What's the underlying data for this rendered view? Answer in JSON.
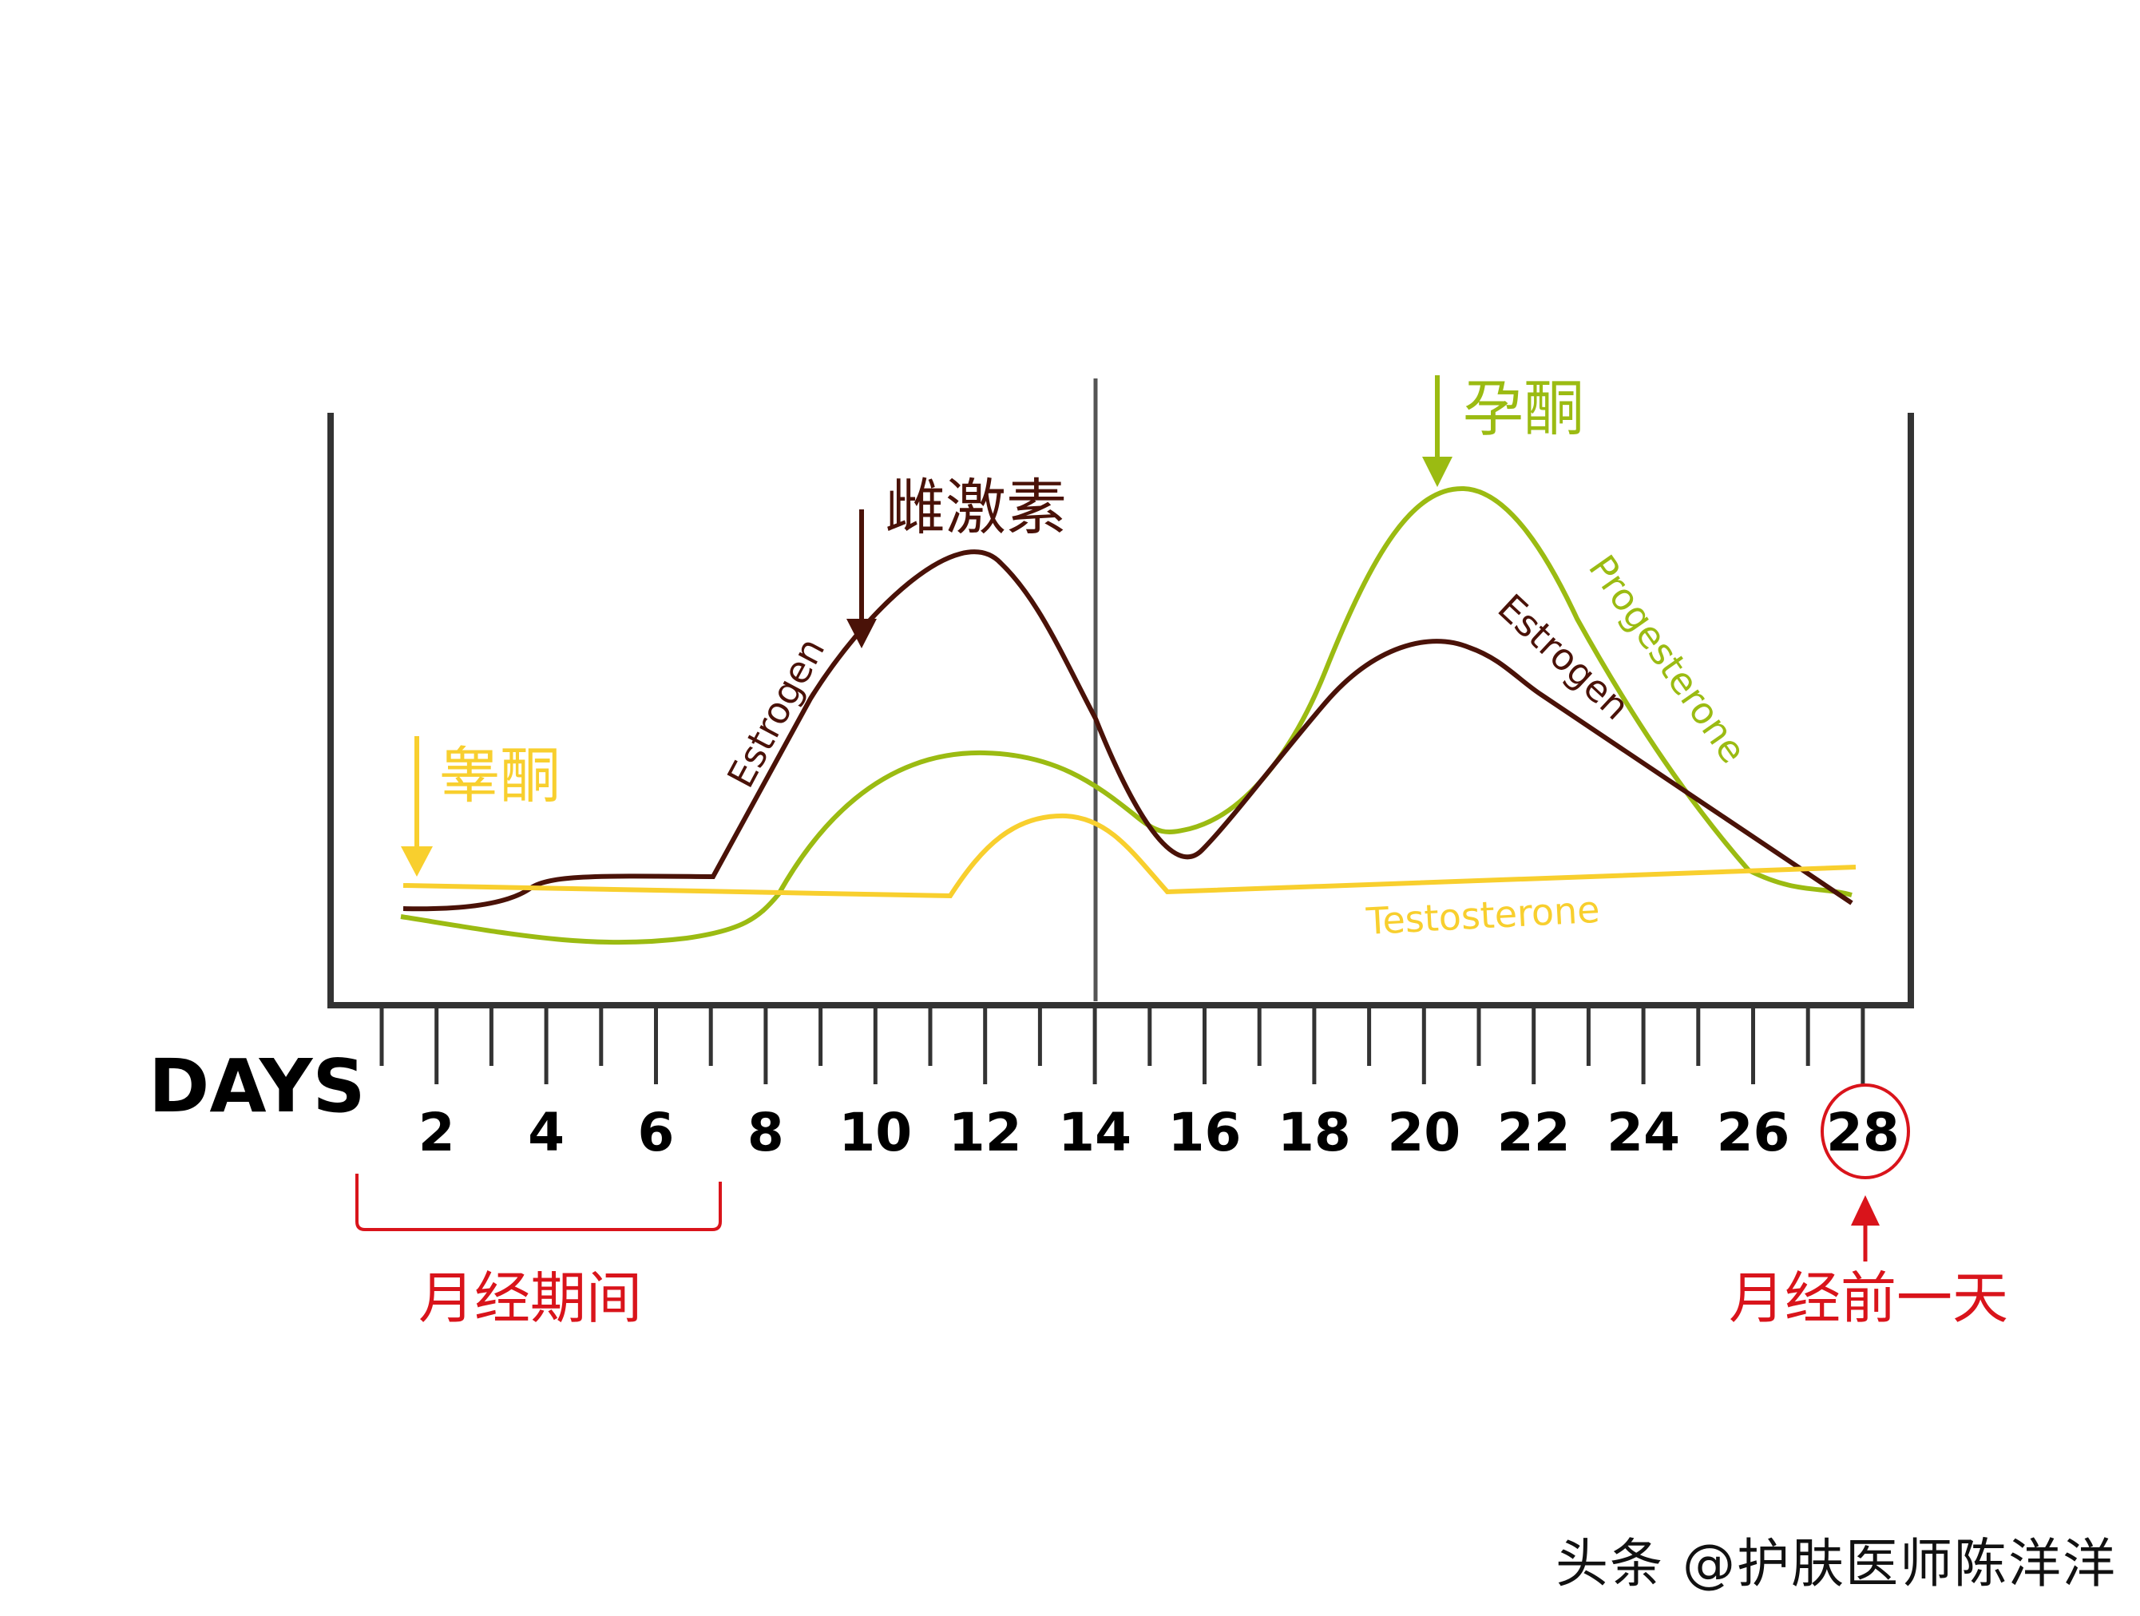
{
  "chart_data": {
    "type": "line",
    "title": "",
    "xlabel": "DAYS",
    "ylabel": "",
    "x_ticks": [
      2,
      4,
      6,
      8,
      10,
      12,
      14,
      16,
      18,
      20,
      22,
      24,
      26,
      28
    ],
    "x_range": [
      1,
      28
    ],
    "grid": false,
    "legend": "inline labels on curves",
    "series": [
      {
        "name": "Estrogen",
        "cn_label": "雌激素",
        "color": "#4a1208",
        "x": [
          1,
          3.3,
          3.7,
          7,
          9.5,
          12.2,
          13.8,
          15,
          15.9,
          17,
          19,
          20.8,
          21.8,
          24,
          28
        ],
        "y": [
          0.17,
          0.19,
          0.21,
          0.22,
          0.58,
          0.75,
          0.58,
          0.35,
          0.26,
          0.4,
          0.56,
          0.6,
          0.56,
          0.4,
          0.18
        ]
      },
      {
        "name": "Progesterone",
        "cn_label": "孕酮",
        "color": "#9bbb12",
        "x": [
          1,
          5,
          7.7,
          9,
          11.9,
          14,
          15.3,
          16.5,
          18,
          20.6,
          22.7,
          25.8,
          28
        ],
        "y": [
          0.15,
          0.11,
          0.14,
          0.31,
          0.43,
          0.36,
          0.29,
          0.33,
          0.56,
          0.87,
          0.65,
          0.3,
          0.19
        ]
      },
      {
        "name": "Testosterone",
        "cn_label": "睾酮",
        "color": "#f8cf2e",
        "x": [
          1,
          11,
          12,
          13.5,
          14.7,
          15.2,
          28
        ],
        "y": [
          0.2,
          0.18,
          0.29,
          0.32,
          0.26,
          0.19,
          0.23
        ]
      }
    ],
    "annotations": [
      {
        "text": "睾酮",
        "target": "Testosterone",
        "arrow": "down",
        "color": "#f8cf2e"
      },
      {
        "text": "雌激素",
        "target": "Estrogen",
        "arrow": "down",
        "color": "#4a1208"
      },
      {
        "text": "孕酮",
        "target": "Progesterone",
        "arrow": "down",
        "color": "#9bbb12"
      },
      {
        "text": "月经期间",
        "range": [
          1,
          7
        ],
        "type": "bracket",
        "color": "#d9141b"
      },
      {
        "text": "月经前一天",
        "target_day": 28,
        "type": "circle+arrow",
        "color": "#d9141b"
      }
    ],
    "divider_day": 14
  },
  "axis": {
    "days_label": "DAYS",
    "tick_labels": [
      "2",
      "4",
      "6",
      "8",
      "10",
      "12",
      "14",
      "16",
      "18",
      "20",
      "22",
      "24",
      "26",
      "28"
    ]
  },
  "labels": {
    "testosterone_cn": "睾酮",
    "estrogen_cn": "雌激素",
    "progesterone_cn": "孕酮",
    "estrogen_en_1": "Estrogen",
    "estrogen_en_2": "Estrogen",
    "progesterone_en": "Progesterone",
    "testosterone_en": "Testosterone",
    "menstruation_period": "月经期间",
    "day_before_menstruation": "月经前一天"
  },
  "colors": {
    "estrogen": "#4a1208",
    "progesterone": "#9bbb12",
    "testosterone": "#f8cf2e",
    "axis": "#333333",
    "divider": "#555555",
    "annotation_red": "#d9141b"
  },
  "watermark": "头条 @护肤医师陈洋洋"
}
